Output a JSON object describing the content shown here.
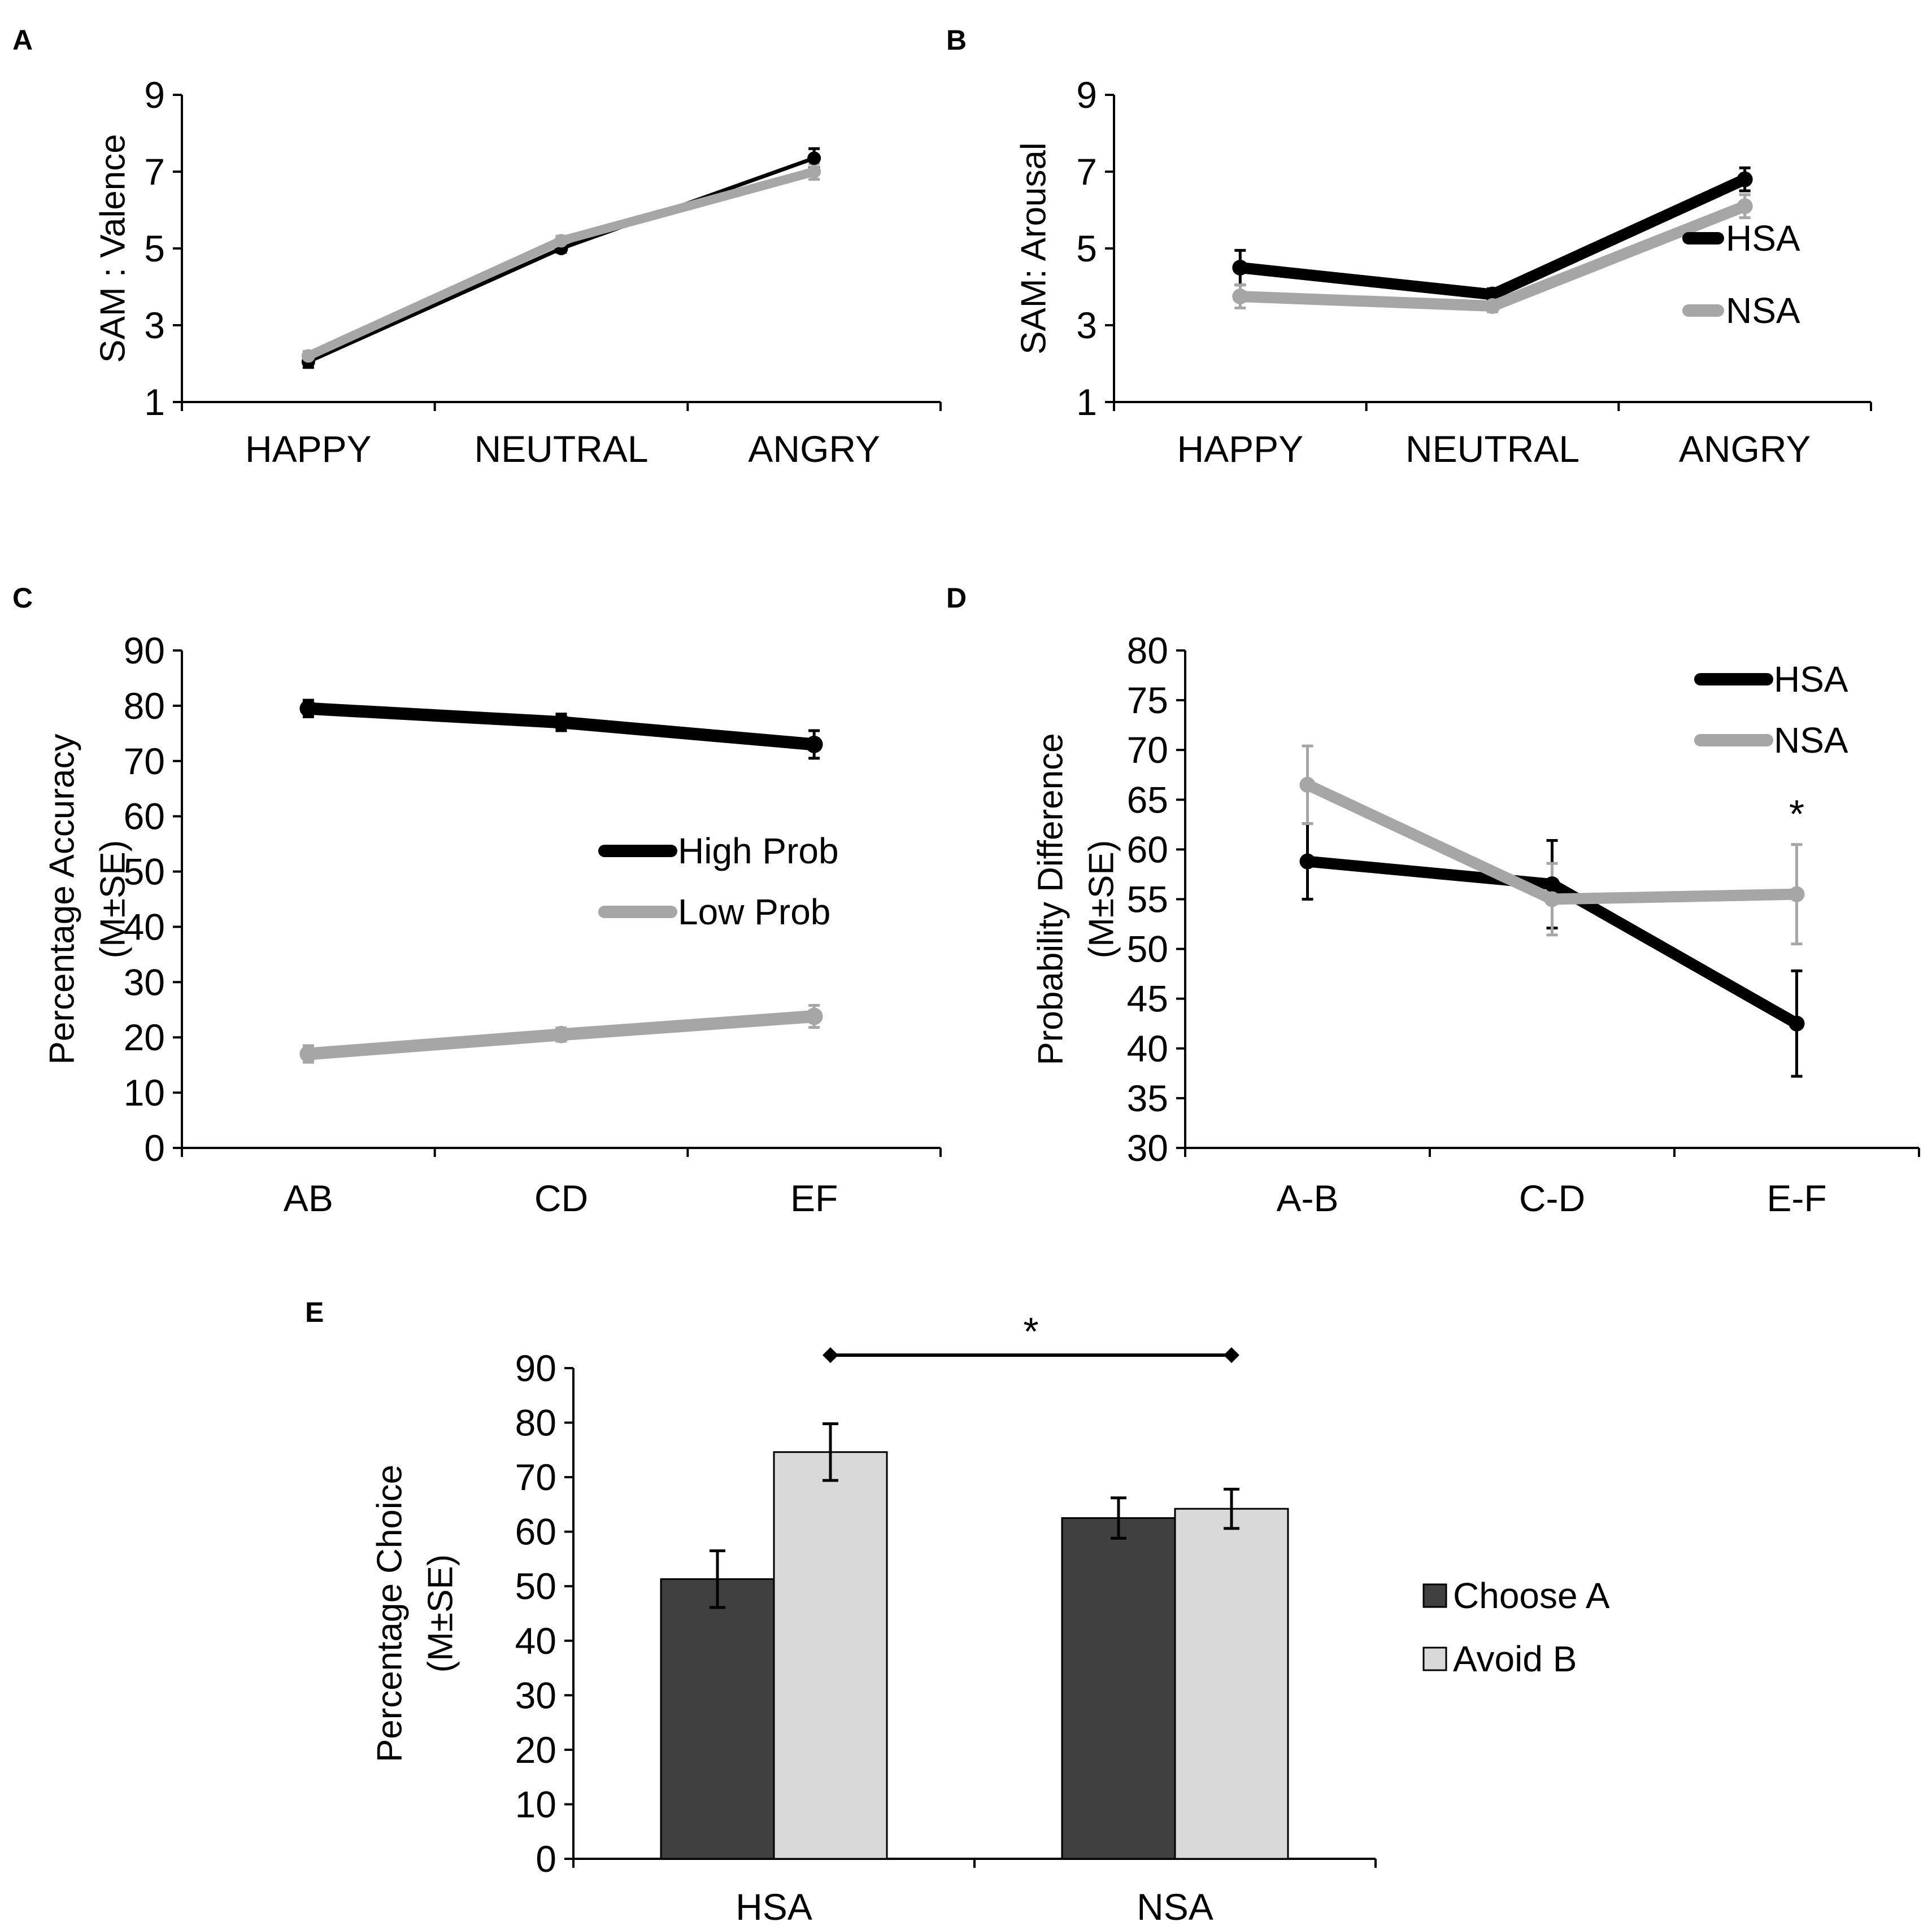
{
  "figure": {
    "colors": {
      "hsa": "#000000",
      "nsa": "#a6a6a6",
      "choose_a": "#404040",
      "avoid_b": "#d9d9d9",
      "axis": "#000000"
    }
  },
  "panels": [
    {
      "id": "A",
      "letter": "A",
      "type": "line",
      "ylabel_lines": [
        "SAM : Valence"
      ],
      "ylim": [
        1,
        9
      ],
      "yticks": [
        "1",
        "3",
        "5",
        "7",
        "9"
      ],
      "ytick_values": [
        1,
        3,
        5,
        7,
        9
      ],
      "categories": [
        "HAPPY",
        "NEUTRAL",
        "ANGRY"
      ],
      "series": [
        {
          "name": "HSA",
          "color": "#000000",
          "values": [
            2.05,
            5.0,
            7.35
          ],
          "err": [
            0.15,
            0.1,
            0.25
          ],
          "stroke": 7
        },
        {
          "name": "NSA",
          "color": "#a6a6a6",
          "values": [
            2.2,
            5.2,
            7.0
          ],
          "err": [
            0.12,
            0.12,
            0.2
          ],
          "stroke": 16
        }
      ],
      "legend": null
    },
    {
      "id": "B",
      "letter": "B",
      "type": "line",
      "ylabel_lines": [
        "SAM: Arousal"
      ],
      "ylim": [
        1,
        9
      ],
      "yticks": [
        "1",
        "3",
        "5",
        "7",
        "9"
      ],
      "ytick_values": [
        1,
        3,
        5,
        7,
        9
      ],
      "categories": [
        "HAPPY",
        "NEUTRAL",
        "ANGRY"
      ],
      "series": [
        {
          "name": "HSA",
          "color": "#000000",
          "values": [
            4.5,
            3.8,
            6.8
          ],
          "err": [
            0.45,
            0.15,
            0.3
          ],
          "stroke": 20
        },
        {
          "name": "NSA",
          "color": "#a6a6a6",
          "values": [
            3.75,
            3.5,
            6.1
          ],
          "err": [
            0.3,
            0.15,
            0.3
          ],
          "stroke": 20
        }
      ],
      "legend": [
        "HSA",
        "NSA"
      ]
    },
    {
      "id": "C",
      "letter": "C",
      "type": "line",
      "ylabel_lines": [
        "Percentage Accuracy",
        "(M±SE)"
      ],
      "ylim": [
        0,
        90
      ],
      "yticks": [
        "0",
        "10",
        "20",
        "30",
        "40",
        "50",
        "60",
        "70",
        "80",
        "90"
      ],
      "ytick_values": [
        0,
        10,
        20,
        30,
        40,
        50,
        60,
        70,
        80,
        90
      ],
      "categories": [
        "AB",
        "CD",
        "EF"
      ],
      "series": [
        {
          "name": "High Prob",
          "color": "#000000",
          "values": [
            79.5,
            77.0,
            73.0
          ],
          "err": [
            1.5,
            1.5,
            2.5
          ],
          "stroke": 22
        },
        {
          "name": "Low Prob",
          "color": "#a6a6a6",
          "values": [
            17.0,
            20.5,
            23.8
          ],
          "err": [
            1.5,
            1.2,
            2.0
          ],
          "stroke": 22
        }
      ],
      "legend": [
        "High Prob",
        "Low Prob"
      ]
    },
    {
      "id": "D",
      "letter": "D",
      "type": "line",
      "ylabel_lines": [
        "Probability Difference",
        "(M±SE)"
      ],
      "ylim": [
        30,
        80
      ],
      "yticks": [
        "30",
        "35",
        "40",
        "45",
        "50",
        "55",
        "60",
        "65",
        "70",
        "75",
        "80"
      ],
      "ytick_values": [
        30,
        35,
        40,
        45,
        50,
        55,
        60,
        65,
        70,
        75,
        80
      ],
      "categories": [
        "A-B",
        "C-D",
        "E-F"
      ],
      "series": [
        {
          "name": "HSA",
          "color": "#000000",
          "values": [
            58.8,
            56.5,
            42.5
          ],
          "err": [
            3.8,
            4.4,
            5.3
          ],
          "stroke": 20
        },
        {
          "name": "NSA",
          "color": "#a6a6a6",
          "values": [
            66.5,
            55.0,
            55.5
          ],
          "err": [
            3.9,
            3.6,
            5.0
          ],
          "stroke": 20
        }
      ],
      "legend": [
        "HSA",
        "NSA"
      ],
      "annotation": "*"
    },
    {
      "id": "E",
      "letter": "E",
      "type": "bar",
      "ylabel_lines": [
        "Percentage Choice",
        "(M±SE)"
      ],
      "ylim": [
        0,
        90
      ],
      "yticks": [
        "0",
        "10",
        "20",
        "30",
        "40",
        "50",
        "60",
        "70",
        "80",
        "90"
      ],
      "ytick_values": [
        0,
        10,
        20,
        30,
        40,
        50,
        60,
        70,
        80,
        90
      ],
      "categories": [
        "HSA",
        "NSA"
      ],
      "series": [
        {
          "name": "Choose A",
          "color": "#404040",
          "values": [
            51.3,
            62.5
          ],
          "err": [
            5.2,
            3.7
          ]
        },
        {
          "name": "Avoid B",
          "color": "#d9d9d9",
          "values": [
            74.6,
            64.2
          ],
          "err": [
            5.2,
            3.6
          ]
        }
      ],
      "legend": [
        "Choose A",
        "Avoid B"
      ],
      "annotation": "*"
    }
  ],
  "chart_data": [
    {
      "panel": "A",
      "type": "line",
      "title": "",
      "xlabel": "",
      "ylabel": "SAM : Valence",
      "ylim": [
        1,
        9
      ],
      "categories": [
        "HAPPY",
        "NEUTRAL",
        "ANGRY"
      ],
      "series": [
        {
          "name": "HSA",
          "values": [
            2.05,
            5.0,
            7.35
          ]
        },
        {
          "name": "NSA",
          "values": [
            2.2,
            5.2,
            7.0
          ]
        }
      ]
    },
    {
      "panel": "B",
      "type": "line",
      "title": "",
      "xlabel": "",
      "ylabel": "SAM: Arousal",
      "ylim": [
        1,
        9
      ],
      "categories": [
        "HAPPY",
        "NEUTRAL",
        "ANGRY"
      ],
      "series": [
        {
          "name": "HSA",
          "values": [
            4.5,
            3.8,
            6.8
          ]
        },
        {
          "name": "NSA",
          "values": [
            3.75,
            3.5,
            6.1
          ]
        }
      ]
    },
    {
      "panel": "C",
      "type": "line",
      "title": "",
      "xlabel": "",
      "ylabel": "Percentage Accuracy (M±SE)",
      "ylim": [
        0,
        90
      ],
      "categories": [
        "AB",
        "CD",
        "EF"
      ],
      "series": [
        {
          "name": "High Prob",
          "values": [
            79.5,
            77.0,
            73.0
          ]
        },
        {
          "name": "Low Prob",
          "values": [
            17.0,
            20.5,
            23.8
          ]
        }
      ]
    },
    {
      "panel": "D",
      "type": "line",
      "title": "",
      "xlabel": "",
      "ylabel": "Probability Difference (M±SE)",
      "ylim": [
        30,
        80
      ],
      "categories": [
        "A-B",
        "C-D",
        "E-F"
      ],
      "series": [
        {
          "name": "HSA",
          "values": [
            58.8,
            56.5,
            42.5
          ]
        },
        {
          "name": "NSA",
          "values": [
            66.5,
            55.0,
            55.5
          ]
        }
      ]
    },
    {
      "panel": "E",
      "type": "bar",
      "title": "",
      "xlabel": "",
      "ylabel": "Percentage Choice (M±SE)",
      "ylim": [
        0,
        90
      ],
      "categories": [
        "HSA",
        "NSA"
      ],
      "series": [
        {
          "name": "Choose A",
          "values": [
            51.3,
            62.5
          ]
        },
        {
          "name": "Avoid B",
          "values": [
            74.6,
            64.2
          ]
        }
      ]
    }
  ]
}
